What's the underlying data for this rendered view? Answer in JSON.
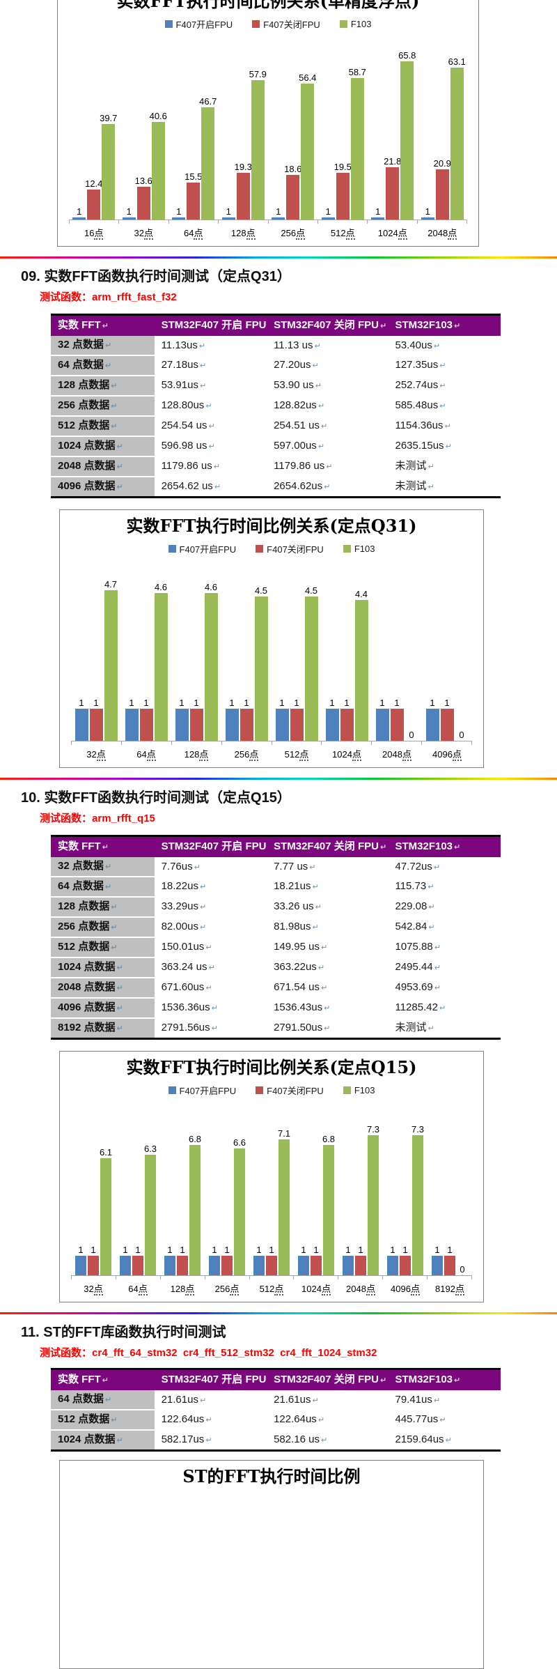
{
  "page": {
    "formatting_mark": "↵",
    "headings": {
      "sec09": "09. 实数FFT函数执行时间测试（定点Q31）",
      "sec10": "10. 实数FFT函数执行时间测试（定点Q15）",
      "sec11": "11. ST的FFT库函数执行时间测试"
    },
    "test_fn_label": "测试函数：",
    "test_fns": {
      "sec09": "arm_rfft_fast_f32",
      "sec10": "arm_rfft_q15",
      "sec11": "cr4_fft_64_stm32  cr4_fft_512_stm32  cr4_fft_1024_stm32"
    }
  },
  "colors": {
    "f407_fpu_on": "#4F81BD",
    "f407_fpu_off": "#C0504D",
    "f103": "#9BBB59",
    "table_header_bg": "#7B067E",
    "row_label_bg": "#BFBFBF",
    "test_fn_red": "#FF0000"
  },
  "tables": [
    {
      "headers": [
        "实数 FFT",
        "STM32F407 开启 FPU",
        "STM32F407 关闭 FPU",
        "STM32F103"
      ],
      "rows": [
        [
          "32 点数据",
          "11.13us",
          "11.13 us",
          "53.40us"
        ],
        [
          "64 点数据",
          "27.18us",
          "27.20us",
          "127.35us"
        ],
        [
          "128 点数据",
          "53.91us",
          "53.90 us",
          "252.74us"
        ],
        [
          "256 点数据",
          "128.80us",
          "128.82us",
          "585.48us"
        ],
        [
          "512 点数据",
          "254.54 us",
          "254.51 us",
          "1154.36us"
        ],
        [
          "1024 点数据",
          "596.98 us",
          "597.00us",
          "2635.15us"
        ],
        [
          "2048 点数据",
          "1179.86 us",
          "1179.86 us",
          "未测试"
        ],
        [
          "4096 点数据",
          "2654.62 us",
          "2654.62us",
          "未测试"
        ]
      ]
    },
    {
      "headers": [
        "实数 FFT",
        "STM32F407 开启 FPU",
        "STM32F407 关闭 FPU",
        "STM32F103"
      ],
      "rows": [
        [
          "32 点数据",
          "7.76us",
          "7.77 us",
          "47.72us"
        ],
        [
          "64 点数据",
          "18.22us",
          "18.21us",
          "115.73"
        ],
        [
          "128 点数据",
          "33.29us",
          "33.26 us",
          "229.08"
        ],
        [
          "256 点数据",
          "82.00us",
          "81.98us",
          "542.84"
        ],
        [
          "512 点数据",
          "150.01us",
          "149.95 us",
          "1075.88"
        ],
        [
          "1024 点数据",
          "363.24 us",
          "363.22us",
          "2495.44"
        ],
        [
          "2048 点数据",
          "671.60us",
          "671.54 us",
          "4953.69"
        ],
        [
          "4096 点数据",
          "1536.36us",
          "1536.43us",
          "11285.42"
        ],
        [
          "8192 点数据",
          "2791.56us",
          "2791.50us",
          "未测试"
        ]
      ]
    },
    {
      "headers": [
        "实数 FFT",
        "STM32F407 开启 FPU",
        "STM32F407 关闭 FPU",
        "STM32F103"
      ],
      "rows": [
        [
          "64 点数据",
          "21.61us",
          "21.61us",
          "79.41us"
        ],
        [
          "512 点数据",
          "122.64us",
          "122.64us",
          "445.77us"
        ],
        [
          "1024 点数据",
          "582.17us",
          "582.16 us",
          "2159.64us"
        ]
      ]
    }
  ],
  "chart_data": [
    {
      "type": "bar",
      "title": "实数FFT执行时间比例关系(单精度浮点)",
      "legend_position": "top",
      "categories": [
        "16点",
        "32点",
        "64点",
        "128点",
        "256点",
        "512点",
        "1024点",
        "2048点"
      ],
      "series": [
        {
          "name": "F407开启FPU",
          "color_key": "f407_fpu_on",
          "values": [
            1,
            1,
            1,
            1,
            1,
            1,
            1,
            1
          ]
        },
        {
          "name": "F407关闭FPU",
          "color_key": "f407_fpu_off",
          "values": [
            12.4,
            13.6,
            15.5,
            19.3,
            18.6,
            19.5,
            21.8,
            20.9
          ]
        },
        {
          "name": "F103",
          "color_key": "f103",
          "values": [
            39.7,
            40.6,
            46.7,
            57.9,
            56.4,
            58.7,
            65.8,
            63.1
          ]
        }
      ]
    },
    {
      "type": "bar",
      "title": "实数FFT执行时间比例关系(定点Q31)",
      "legend_position": "top",
      "categories": [
        "32点",
        "64点",
        "128点",
        "256点",
        "512点",
        "1024点",
        "2048点",
        "4096点"
      ],
      "series": [
        {
          "name": "F407开启FPU",
          "color_key": "f407_fpu_on",
          "values": [
            1,
            1,
            1,
            1,
            1,
            1,
            1,
            1
          ]
        },
        {
          "name": "F407关闭FPU",
          "color_key": "f407_fpu_off",
          "values": [
            1,
            1,
            1,
            1,
            1,
            1,
            1,
            1
          ]
        },
        {
          "name": "F103",
          "color_key": "f103",
          "values": [
            4.7,
            4.6,
            4.6,
            4.5,
            4.5,
            4.4,
            0,
            0
          ]
        }
      ]
    },
    {
      "type": "bar",
      "title": "实数FFT执行时间比例关系(定点Q15)",
      "legend_position": "top",
      "categories": [
        "32点",
        "64点",
        "128点",
        "256点",
        "512点",
        "1024点",
        "2048点",
        "4096点",
        "8192点"
      ],
      "series": [
        {
          "name": "F407开启FPU",
          "color_key": "f407_fpu_on",
          "values": [
            1,
            1,
            1,
            1,
            1,
            1,
            1,
            1,
            1
          ]
        },
        {
          "name": "F407关闭FPU",
          "color_key": "f407_fpu_off",
          "values": [
            1,
            1,
            1,
            1,
            1,
            1,
            1,
            1,
            1
          ]
        },
        {
          "name": "F103",
          "color_key": "f103",
          "values": [
            6.1,
            6.3,
            6.8,
            6.6,
            7.1,
            6.8,
            7.3,
            7.3,
            0
          ]
        }
      ]
    },
    {
      "type": "bar",
      "title": "ST的FFT执行时间比例",
      "legend_position": "top",
      "categories": [],
      "series": []
    }
  ]
}
